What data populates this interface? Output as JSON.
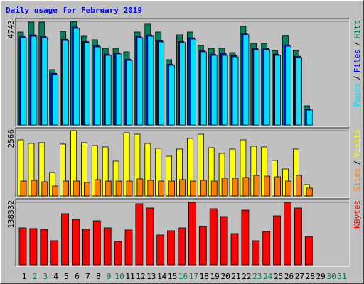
{
  "title": "Daily usage for February 2019",
  "legend_separator": "/",
  "categories": [
    "1",
    "2",
    "3",
    "4",
    "5",
    "6",
    "7",
    "8",
    "9",
    "10",
    "11",
    "12",
    "13",
    "14",
    "15",
    "16",
    "17",
    "18",
    "19",
    "20",
    "21",
    "22",
    "23",
    "24",
    "25",
    "26",
    "27",
    "28",
    "29",
    "30",
    "31"
  ],
  "category_colors": [
    "#000000",
    "#00805c",
    "#00805c",
    "#000000",
    "#000000",
    "#000000",
    "#000000",
    "#000000",
    "#00805c",
    "#00805c",
    "#000000",
    "#000000",
    "#000000",
    "#000000",
    "#000000",
    "#00805c",
    "#00805c",
    "#000000",
    "#000000",
    "#000000",
    "#000000",
    "#000000",
    "#00805c",
    "#00805c",
    "#000000",
    "#000000",
    "#000000",
    "#000000",
    "#000000",
    "#00805c",
    "#00805c"
  ],
  "chart_data": [
    {
      "type": "bar",
      "ylim": [
        0,
        4743
      ],
      "yticks": [
        4743
      ],
      "series": [
        {
          "name": "Hits",
          "color": "#00805c",
          "values": [
            4256,
            4711,
            4711,
            2534,
            4289,
            4743,
            4061,
            3899,
            3509,
            3509,
            3346,
            4256,
            4614,
            4256,
            2989,
            4126,
            4256,
            3639,
            3509,
            3509,
            3314,
            4516,
            3736,
            3736,
            3411,
            4094,
            3411,
            877,
            null,
            null,
            null
          ]
        },
        {
          "name": "Files",
          "color": "#0000ff",
          "values": [
            4050,
            4120,
            4050,
            2360,
            3920,
            4480,
            3820,
            3630,
            3240,
            3300,
            3010,
            4050,
            4120,
            3860,
            2780,
            3820,
            3990,
            3400,
            3240,
            3282,
            3170,
            4180,
            3500,
            3500,
            3240,
            3660,
            3140,
            720,
            null,
            null,
            null
          ]
        },
        {
          "name": "Pages",
          "color": "#00e0ff",
          "values": [
            3996,
            4061,
            3996,
            2307,
            3866,
            4419,
            3769,
            3574,
            3184,
            3249,
            2957,
            3996,
            4061,
            3801,
            2729,
            3769,
            3931,
            3346,
            3184,
            3184,
            3119,
            4126,
            3444,
            3444,
            3184,
            3606,
            3087,
            682,
            null,
            null,
            null
          ]
        }
      ]
    },
    {
      "type": "bar",
      "ylim": [
        0,
        2566
      ],
      "yticks": [
        2566
      ],
      "series": [
        {
          "name": "Visits",
          "color": "#ffff00",
          "values": [
            2204,
            2065,
            2093,
            921,
            2037,
            2566,
            2093,
            1981,
            1925,
            1367,
            2483,
            2427,
            2065,
            1869,
            1562,
            1841,
            2260,
            2427,
            1897,
            1674,
            1841,
            2204,
            1953,
            1925,
            1395,
            1060,
            1841,
            446,
            null,
            null,
            null
          ]
        },
        {
          "name": "Sites",
          "color": "#ff8000",
          "values": [
            586,
            614,
            558,
            391,
            586,
            586,
            530,
            642,
            586,
            586,
            586,
            670,
            614,
            586,
            586,
            642,
            586,
            614,
            586,
            698,
            698,
            725,
            809,
            781,
            753,
            586,
            809,
            307,
            null,
            null,
            null
          ]
        }
      ]
    },
    {
      "type": "bar",
      "ylim": [
        0,
        138332
      ],
      "yticks": [
        138332
      ],
      "series": [
        {
          "name": "KBytes",
          "color": "#ff0000",
          "values": [
            81744,
            80172,
            78600,
            53448,
            113184,
            100608,
            78600,
            97464,
            81744,
            51876,
            77028,
            135192,
            125760,
            66024,
            75456,
            81744,
            138332,
            84888,
            124188,
            106896,
            69168,
            121044,
            53448,
            73884,
            108468,
            138332,
            125760,
            62880,
            null,
            null,
            null
          ]
        }
      ]
    }
  ]
}
